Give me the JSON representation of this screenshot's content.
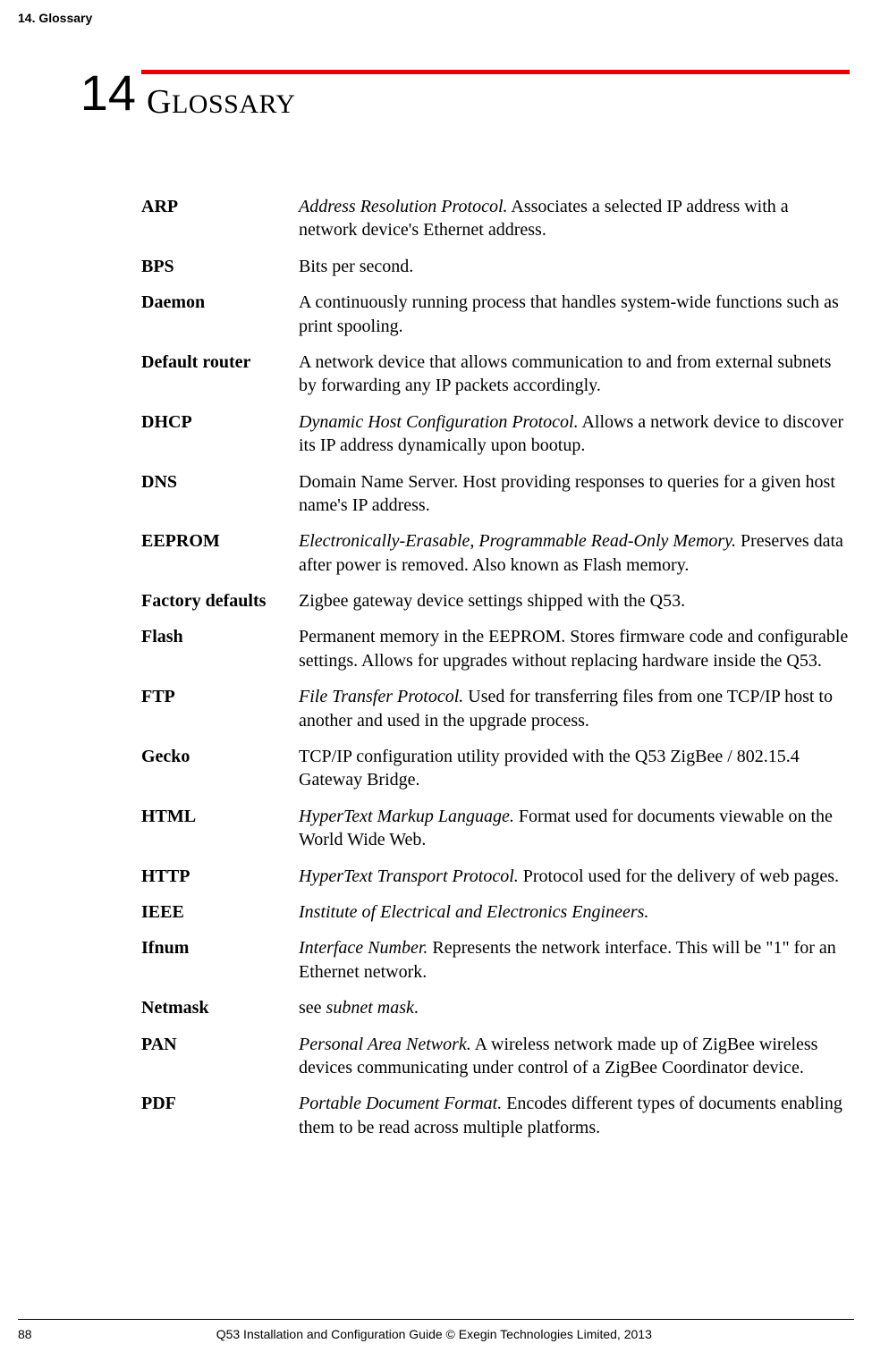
{
  "page": {
    "running_header": "14. Glossary",
    "chapter_number": "14",
    "chapter_title_first": "G",
    "chapter_title_rest": "LOSSARY",
    "footer_page": "88",
    "footer_text": "Q53 Installation and Configuration Guide  © Exegin Technologies Limited, 2013"
  },
  "colors": {
    "accent": "#e60000",
    "text": "#000000",
    "bg": "#ffffff"
  },
  "glossary": [
    {
      "term": "ARP",
      "italic": "Address Resolution Protocol.",
      "rest": " Associates a selected IP address with a network device's Ethernet address."
    },
    {
      "term": "BPS",
      "italic": "",
      "rest": "Bits per second."
    },
    {
      "term": "Daemon",
      "italic": "",
      "rest": "A continuously running process that handles system-wide functions such as print spooling."
    },
    {
      "term": "Default router",
      "italic": "",
      "rest": "A network device that allows communication to and from external subnets by forwarding any IP packets accordingly."
    },
    {
      "term": "DHCP",
      "italic": "Dynamic Host Configuration Protocol.",
      "rest": " Allows a network device to discover its IP address dynamically upon bootup."
    },
    {
      "term": "DNS",
      "italic": "",
      "rest": "Domain Name Server. Host providing responses to queries for a given host name's IP address."
    },
    {
      "term": "EEPROM",
      "italic": "Electronically-Erasable, Programmable Read-Only Memory.",
      "rest": " Preserves data after power is removed. Also known as Flash memory."
    },
    {
      "term": "Factory defaults",
      "italic": "",
      "rest": "Zigbee gateway device settings shipped with the Q53."
    },
    {
      "term": "Flash",
      "italic": "",
      "rest": "Permanent memory in the EEPROM. Stores firmware code and configurable settings. Allows for upgrades without replacing hardware inside the Q53."
    },
    {
      "term": "FTP",
      "italic": "File Transfer Protocol.",
      "rest": " Used for transferring files from one TCP/IP host to another and used in the upgrade process."
    },
    {
      "term": "Gecko",
      "italic": "",
      "rest": "TCP/IP configuration utility provided with the Q53 ZigBee / 802.15.4 Gateway Bridge."
    },
    {
      "term": "HTML",
      "italic": "HyperText Markup Language.",
      "rest": " Format used for documents viewable on the World Wide Web."
    },
    {
      "term": "HTTP",
      "italic": "HyperText Transport Protocol.",
      "rest": " Protocol used for the delivery of web pages."
    },
    {
      "term": "IEEE",
      "italic": "Institute of Electrical and Electronics Engineers.",
      "rest": ""
    },
    {
      "term": "Ifnum",
      "italic": "Interface Number.",
      "rest": " Represents the network interface. This will be \"1\" for an Ethernet network."
    },
    {
      "term": "Netmask",
      "italic_prefix": "see ",
      "italic": "subnet mask",
      "rest": "."
    },
    {
      "term": "PAN",
      "italic": "Personal Area Network.",
      "rest": " A wireless network made up of ZigBee wireless devices communicating under control of a ZigBee Coordinator device."
    },
    {
      "term": "PDF",
      "italic": "Portable Document Format.",
      "rest": " Encodes different types of documents enabling them to be read across multiple platforms."
    }
  ]
}
